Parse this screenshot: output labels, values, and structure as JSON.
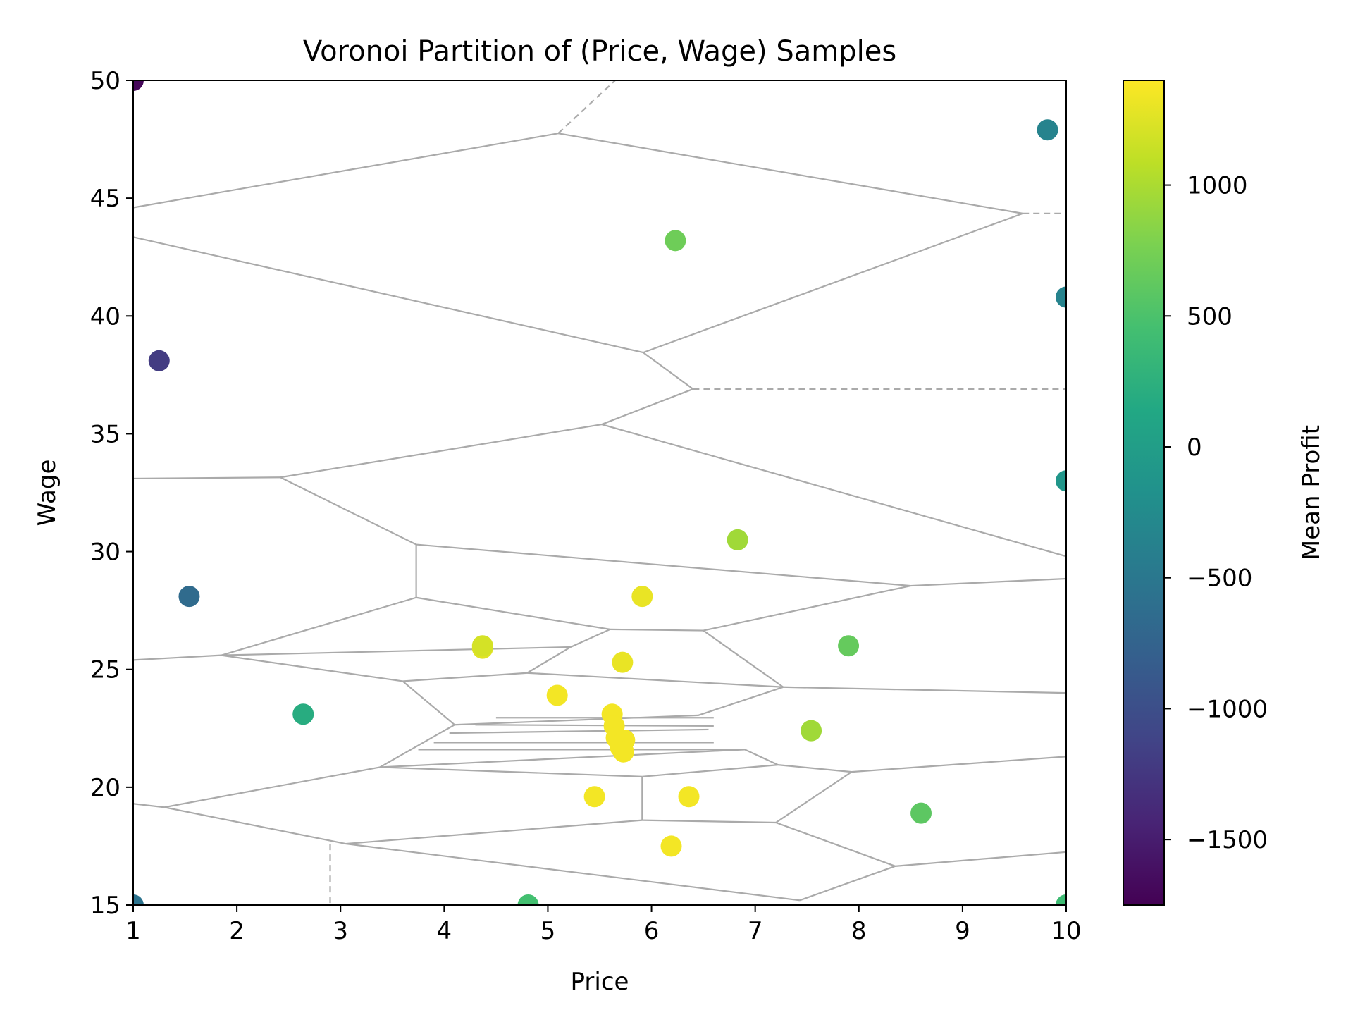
{
  "chart_data": {
    "type": "scatter",
    "title": "Voronoi Partition of (Price, Wage) Samples",
    "xlabel": "Price",
    "ylabel": "Wage",
    "xlim": [
      1,
      10
    ],
    "ylim": [
      15,
      50
    ],
    "xticks": [
      1,
      2,
      3,
      4,
      5,
      6,
      7,
      8,
      9,
      10
    ],
    "yticks": [
      15,
      20,
      25,
      30,
      35,
      40,
      45,
      50
    ],
    "colorbar": {
      "label": "Mean Profit",
      "range": [
        -1750,
        1400
      ],
      "ticks": [
        -1500,
        -1000,
        -500,
        0,
        500,
        1000
      ],
      "tick_labels": [
        "−1500",
        "−1000",
        "−500",
        "0",
        "500",
        "1000"
      ],
      "colormap": "viridis"
    },
    "grid": false,
    "points": [
      {
        "x": 1.0,
        "y": 50.0,
        "value": -1700
      },
      {
        "x": 9.82,
        "y": 47.9,
        "value": -350
      },
      {
        "x": 6.23,
        "y": 43.2,
        "value": 700
      },
      {
        "x": 10.0,
        "y": 40.8,
        "value": -350
      },
      {
        "x": 1.25,
        "y": 38.1,
        "value": -1200
      },
      {
        "x": 10.0,
        "y": 33.0,
        "value": -100
      },
      {
        "x": 6.83,
        "y": 30.5,
        "value": 950
      },
      {
        "x": 1.54,
        "y": 28.1,
        "value": -650
      },
      {
        "x": 5.91,
        "y": 28.1,
        "value": 1300
      },
      {
        "x": 4.37,
        "y": 25.9,
        "value": 1250
      },
      {
        "x": 4.37,
        "y": 26.0,
        "value": 1200
      },
      {
        "x": 7.9,
        "y": 26.0,
        "value": 650
      },
      {
        "x": 5.72,
        "y": 25.3,
        "value": 1300
      },
      {
        "x": 2.64,
        "y": 23.1,
        "value": 200
      },
      {
        "x": 5.09,
        "y": 23.9,
        "value": 1350
      },
      {
        "x": 5.62,
        "y": 23.1,
        "value": 1350
      },
      {
        "x": 5.64,
        "y": 22.6,
        "value": 1350
      },
      {
        "x": 5.66,
        "y": 22.1,
        "value": 1350
      },
      {
        "x": 5.7,
        "y": 21.7,
        "value": 1350
      },
      {
        "x": 5.74,
        "y": 22.0,
        "value": 1350
      },
      {
        "x": 5.73,
        "y": 21.5,
        "value": 1350
      },
      {
        "x": 7.54,
        "y": 22.4,
        "value": 950
      },
      {
        "x": 5.45,
        "y": 19.6,
        "value": 1350
      },
      {
        "x": 6.36,
        "y": 19.6,
        "value": 1350
      },
      {
        "x": 8.6,
        "y": 18.9,
        "value": 600
      },
      {
        "x": 6.19,
        "y": 17.5,
        "value": 1350
      },
      {
        "x": 1.0,
        "y": 15.0,
        "value": -550
      },
      {
        "x": 4.81,
        "y": 15.0,
        "value": 450
      },
      {
        "x": 10.0,
        "y": 15.0,
        "value": 400
      }
    ],
    "voronoi_edges": [
      [
        [
          1.0,
          44.6
        ],
        [
          5.1,
          47.75
        ]
      ],
      [
        [
          5.1,
          47.75
        ],
        [
          9.58,
          44.35
        ]
      ],
      [
        [
          1.0,
          43.35
        ],
        [
          5.92,
          38.45
        ]
      ],
      [
        [
          5.92,
          38.45
        ],
        [
          9.58,
          44.35
        ]
      ],
      [
        [
          5.92,
          38.45
        ],
        [
          6.4,
          36.9
        ]
      ],
      [
        [
          6.4,
          36.9
        ],
        [
          5.52,
          35.4
        ]
      ],
      [
        [
          1.0,
          33.1
        ],
        [
          2.42,
          33.15
        ]
      ],
      [
        [
          2.42,
          33.15
        ],
        [
          5.52,
          35.4
        ]
      ],
      [
        [
          5.52,
          35.4
        ],
        [
          10.0,
          29.8
        ]
      ],
      [
        [
          2.42,
          33.15
        ],
        [
          3.73,
          30.3
        ]
      ],
      [
        [
          3.73,
          30.3
        ],
        [
          3.73,
          28.05
        ]
      ],
      [
        [
          3.73,
          30.3
        ],
        [
          8.5,
          28.55
        ]
      ],
      [
        [
          8.5,
          28.55
        ],
        [
          10.0,
          28.85
        ]
      ],
      [
        [
          3.73,
          28.05
        ],
        [
          5.6,
          26.7
        ]
      ],
      [
        [
          5.6,
          26.7
        ],
        [
          6.5,
          26.65
        ]
      ],
      [
        [
          6.5,
          26.65
        ],
        [
          8.5,
          28.55
        ]
      ],
      [
        [
          6.5,
          26.65
        ],
        [
          7.27,
          24.25
        ]
      ],
      [
        [
          3.73,
          28.05
        ],
        [
          1.85,
          25.6
        ]
      ],
      [
        [
          1.0,
          25.4
        ],
        [
          1.85,
          25.6
        ]
      ],
      [
        [
          1.85,
          25.6
        ],
        [
          5.22,
          25.95
        ]
      ],
      [
        [
          5.22,
          25.95
        ],
        [
          5.6,
          26.7
        ]
      ],
      [
        [
          1.85,
          25.6
        ],
        [
          3.6,
          24.5
        ]
      ],
      [
        [
          3.6,
          24.5
        ],
        [
          4.8,
          24.85
        ]
      ],
      [
        [
          4.8,
          24.85
        ],
        [
          5.22,
          25.95
        ]
      ],
      [
        [
          4.8,
          24.85
        ],
        [
          7.27,
          24.25
        ]
      ],
      [
        [
          7.27,
          24.25
        ],
        [
          10.0,
          24.0
        ]
      ],
      [
        [
          3.6,
          24.5
        ],
        [
          4.1,
          22.65
        ]
      ],
      [
        [
          4.1,
          22.65
        ],
        [
          6.45,
          23.05
        ]
      ],
      [
        [
          6.45,
          23.05
        ],
        [
          7.27,
          24.25
        ]
      ],
      [
        [
          4.1,
          22.65
        ],
        [
          3.38,
          20.85
        ]
      ],
      [
        [
          3.38,
          20.85
        ],
        [
          6.9,
          21.6
        ]
      ],
      [
        [
          6.9,
          21.6
        ],
        [
          7.22,
          20.95
        ]
      ],
      [
        [
          7.22,
          20.95
        ],
        [
          7.93,
          20.65
        ]
      ],
      [
        [
          7.93,
          20.65
        ],
        [
          10.0,
          21.3
        ]
      ],
      [
        [
          7.93,
          20.65
        ],
        [
          7.2,
          18.5
        ]
      ],
      [
        [
          7.2,
          18.5
        ],
        [
          8.35,
          16.65
        ]
      ],
      [
        [
          8.35,
          16.65
        ],
        [
          10.0,
          17.25
        ]
      ],
      [
        [
          7.2,
          18.5
        ],
        [
          5.91,
          18.6
        ]
      ],
      [
        [
          5.91,
          18.6
        ],
        [
          5.91,
          20.45
        ]
      ],
      [
        [
          5.91,
          20.45
        ],
        [
          7.22,
          20.95
        ]
      ],
      [
        [
          3.38,
          20.85
        ],
        [
          5.91,
          20.45
        ]
      ],
      [
        [
          3.38,
          20.85
        ],
        [
          1.3,
          19.15
        ]
      ],
      [
        [
          1.0,
          19.3
        ],
        [
          1.3,
          19.15
        ]
      ],
      [
        [
          1.3,
          19.15
        ],
        [
          3.05,
          17.6
        ]
      ],
      [
        [
          3.05,
          17.6
        ],
        [
          5.91,
          18.6
        ]
      ],
      [
        [
          3.05,
          17.6
        ],
        [
          7.43,
          15.2
        ]
      ],
      [
        [
          7.43,
          15.2
        ],
        [
          8.35,
          16.65
        ]
      ],
      [
        [
          4.5,
          22.95
        ],
        [
          6.6,
          22.95
        ]
      ],
      [
        [
          4.3,
          22.65
        ],
        [
          6.6,
          22.6
        ]
      ],
      [
        [
          4.05,
          22.3
        ],
        [
          6.55,
          22.45
        ]
      ],
      [
        [
          3.9,
          21.9
        ],
        [
          6.6,
          21.9
        ]
      ],
      [
        [
          3.75,
          21.6
        ],
        [
          6.9,
          21.6
        ]
      ],
      [
        [
          5.72,
          22.0
        ],
        [
          5.72,
          21.4
        ]
      ]
    ],
    "voronoi_dashed": [
      [
        [
          5.1,
          47.75
        ],
        [
          5.65,
          50.0
        ]
      ],
      [
        [
          9.58,
          44.35
        ],
        [
          10.0,
          44.35
        ]
      ],
      [
        [
          6.4,
          36.9
        ],
        [
          10.0,
          36.9
        ]
      ],
      [
        [
          2.9,
          17.6
        ],
        [
          2.9,
          15.0
        ]
      ]
    ]
  }
}
